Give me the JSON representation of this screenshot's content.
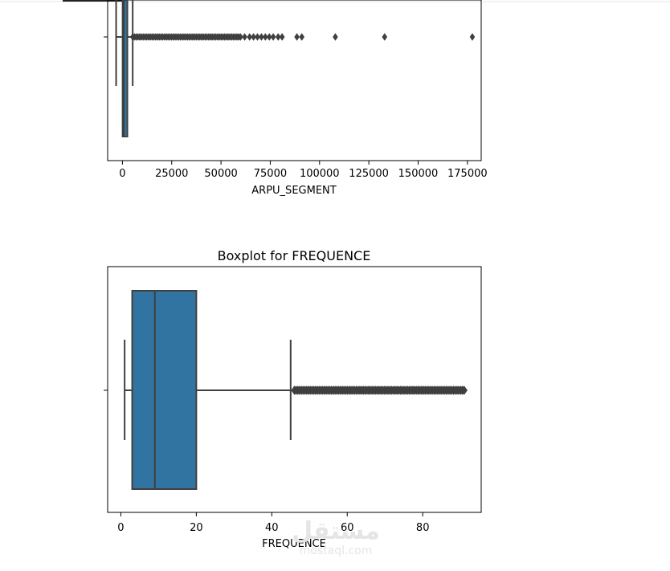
{
  "chart_data": [
    {
      "type": "boxplot",
      "title": "",
      "xlabel": "ARPU_SEGMENT",
      "ylabel": "",
      "xlim": [
        -7500,
        182000
      ],
      "xticks": [
        0,
        25000,
        50000,
        75000,
        100000,
        125000,
        150000,
        175000
      ],
      "xtick_labels": [
        "0",
        "25000",
        "50000",
        "75000",
        "100000",
        "125000",
        "150000",
        "175000"
      ],
      "grid": false,
      "box": {
        "whislo": -3200,
        "q1": 100,
        "med": 700,
        "q3": 2500,
        "whishi": 5200
      },
      "outlier_band": [
        5200,
        60000
      ],
      "outliers": [
        62000,
        64500,
        66500,
        68500,
        70500,
        72500,
        74500,
        76500,
        79000,
        81000,
        88500,
        91000,
        108000,
        133000,
        177500
      ],
      "color": "#3274a1"
    },
    {
      "type": "boxplot",
      "title": "Boxplot for FREQUENCE",
      "xlabel": "FREQUENCE",
      "ylabel": "",
      "xlim": [
        -3.5,
        95.5
      ],
      "xticks": [
        0,
        20,
        40,
        60,
        80
      ],
      "xtick_labels": [
        "0",
        "20",
        "40",
        "60",
        "80"
      ],
      "grid": false,
      "box": {
        "whislo": 1,
        "q1": 3,
        "med": 9,
        "q3": 20,
        "whishi": 45
      },
      "outlier_band": [
        46,
        91
      ],
      "outliers": [],
      "color": "#3274a1"
    }
  ],
  "watermark": {
    "arabic": "مستقل",
    "latin": "mostaql.com"
  }
}
